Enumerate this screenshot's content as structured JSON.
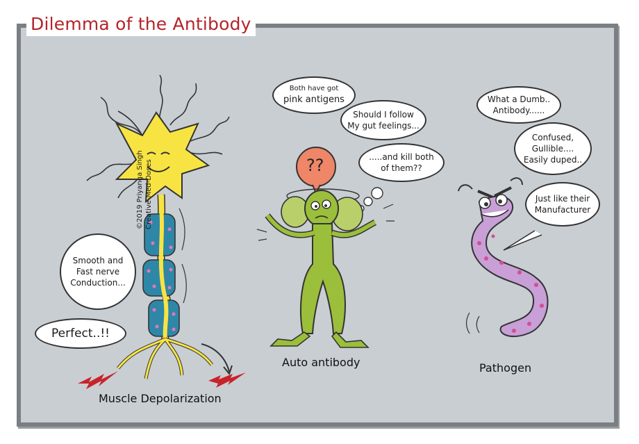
{
  "title": "Dilemma of the Antibody",
  "colors": {
    "title_red": "#b3242a",
    "panel_bg": "#c9ced3",
    "frame": "#7b7f84",
    "neuron_yellow": "#f7e443",
    "myelin_blue": "#2f87a8",
    "antibody_green": "#9bbf3a",
    "pathogen_purple": "#c89fd6",
    "question_orange": "#ee8667",
    "spark_red": "#c8232a"
  },
  "neuron": {
    "bubble_conduction": "Smooth and Fast nerve Conduction...",
    "bubble_perfect": "Perfect..!!",
    "credit_line1": "©2019 Priyanga Singh",
    "credit_line2": "Creative-Med-Doses",
    "caption": "Muscle Depolarization"
  },
  "antibody": {
    "bubble_1": "Both have got",
    "bubble_1b": "pink antigens",
    "bubble_2": "Should I follow My gut feelings...",
    "bubble_3": ".....and kill both of them??",
    "question": "??",
    "caption": "Auto antibody"
  },
  "pathogen": {
    "bubble_1": "What a Dumb.. Antibody......",
    "bubble_2": "Confused, Gullible.... Easily duped..",
    "bubble_3": "Just like their Manufacturer",
    "caption": "Pathogen"
  }
}
